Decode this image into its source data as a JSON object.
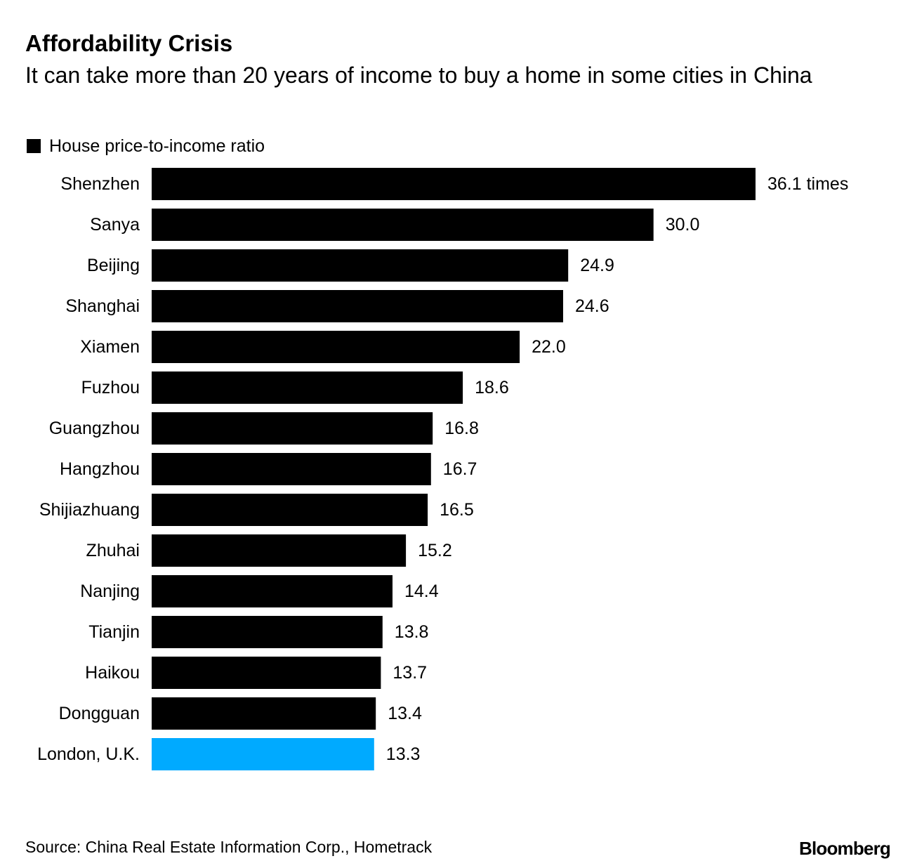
{
  "title": "Affordability Crisis",
  "subtitle": "It can take more than 20 years of income to buy a home in some cities in China",
  "source": "Source: China Real Estate Information Corp., Hometrack",
  "logo": "Bloomberg",
  "colors": {
    "bar_default": "#000000",
    "bar_highlight": "#00aaff"
  },
  "chart_data": {
    "type": "bar",
    "orientation": "horizontal",
    "legend": {
      "label": "House price-to-income ratio",
      "placement": "top-left"
    },
    "categories": [
      "Shenzhen",
      "Sanya",
      "Beijing",
      "Shanghai",
      "Xiamen",
      "Fuzhou",
      "Guangzhou",
      "Hangzhou",
      "Shijiazhuang",
      "Zhuhai",
      "Nanjing",
      "Tianjin",
      "Haikou",
      "Dongguan",
      "London, U.K."
    ],
    "values": [
      36.1,
      30.0,
      24.9,
      24.6,
      22.0,
      18.6,
      16.8,
      16.7,
      16.5,
      15.2,
      14.4,
      13.8,
      13.7,
      13.4,
      13.3
    ],
    "value_labels": [
      "36.1 times",
      "30.0",
      "24.9",
      "24.6",
      "22.0",
      "18.6",
      "16.8",
      "16.7",
      "16.5",
      "15.2",
      "14.4",
      "13.8",
      "13.7",
      "13.4",
      "13.3"
    ],
    "highlighted_category": "London, U.K.",
    "xlim": [
      0,
      36.1
    ],
    "grid": false
  }
}
